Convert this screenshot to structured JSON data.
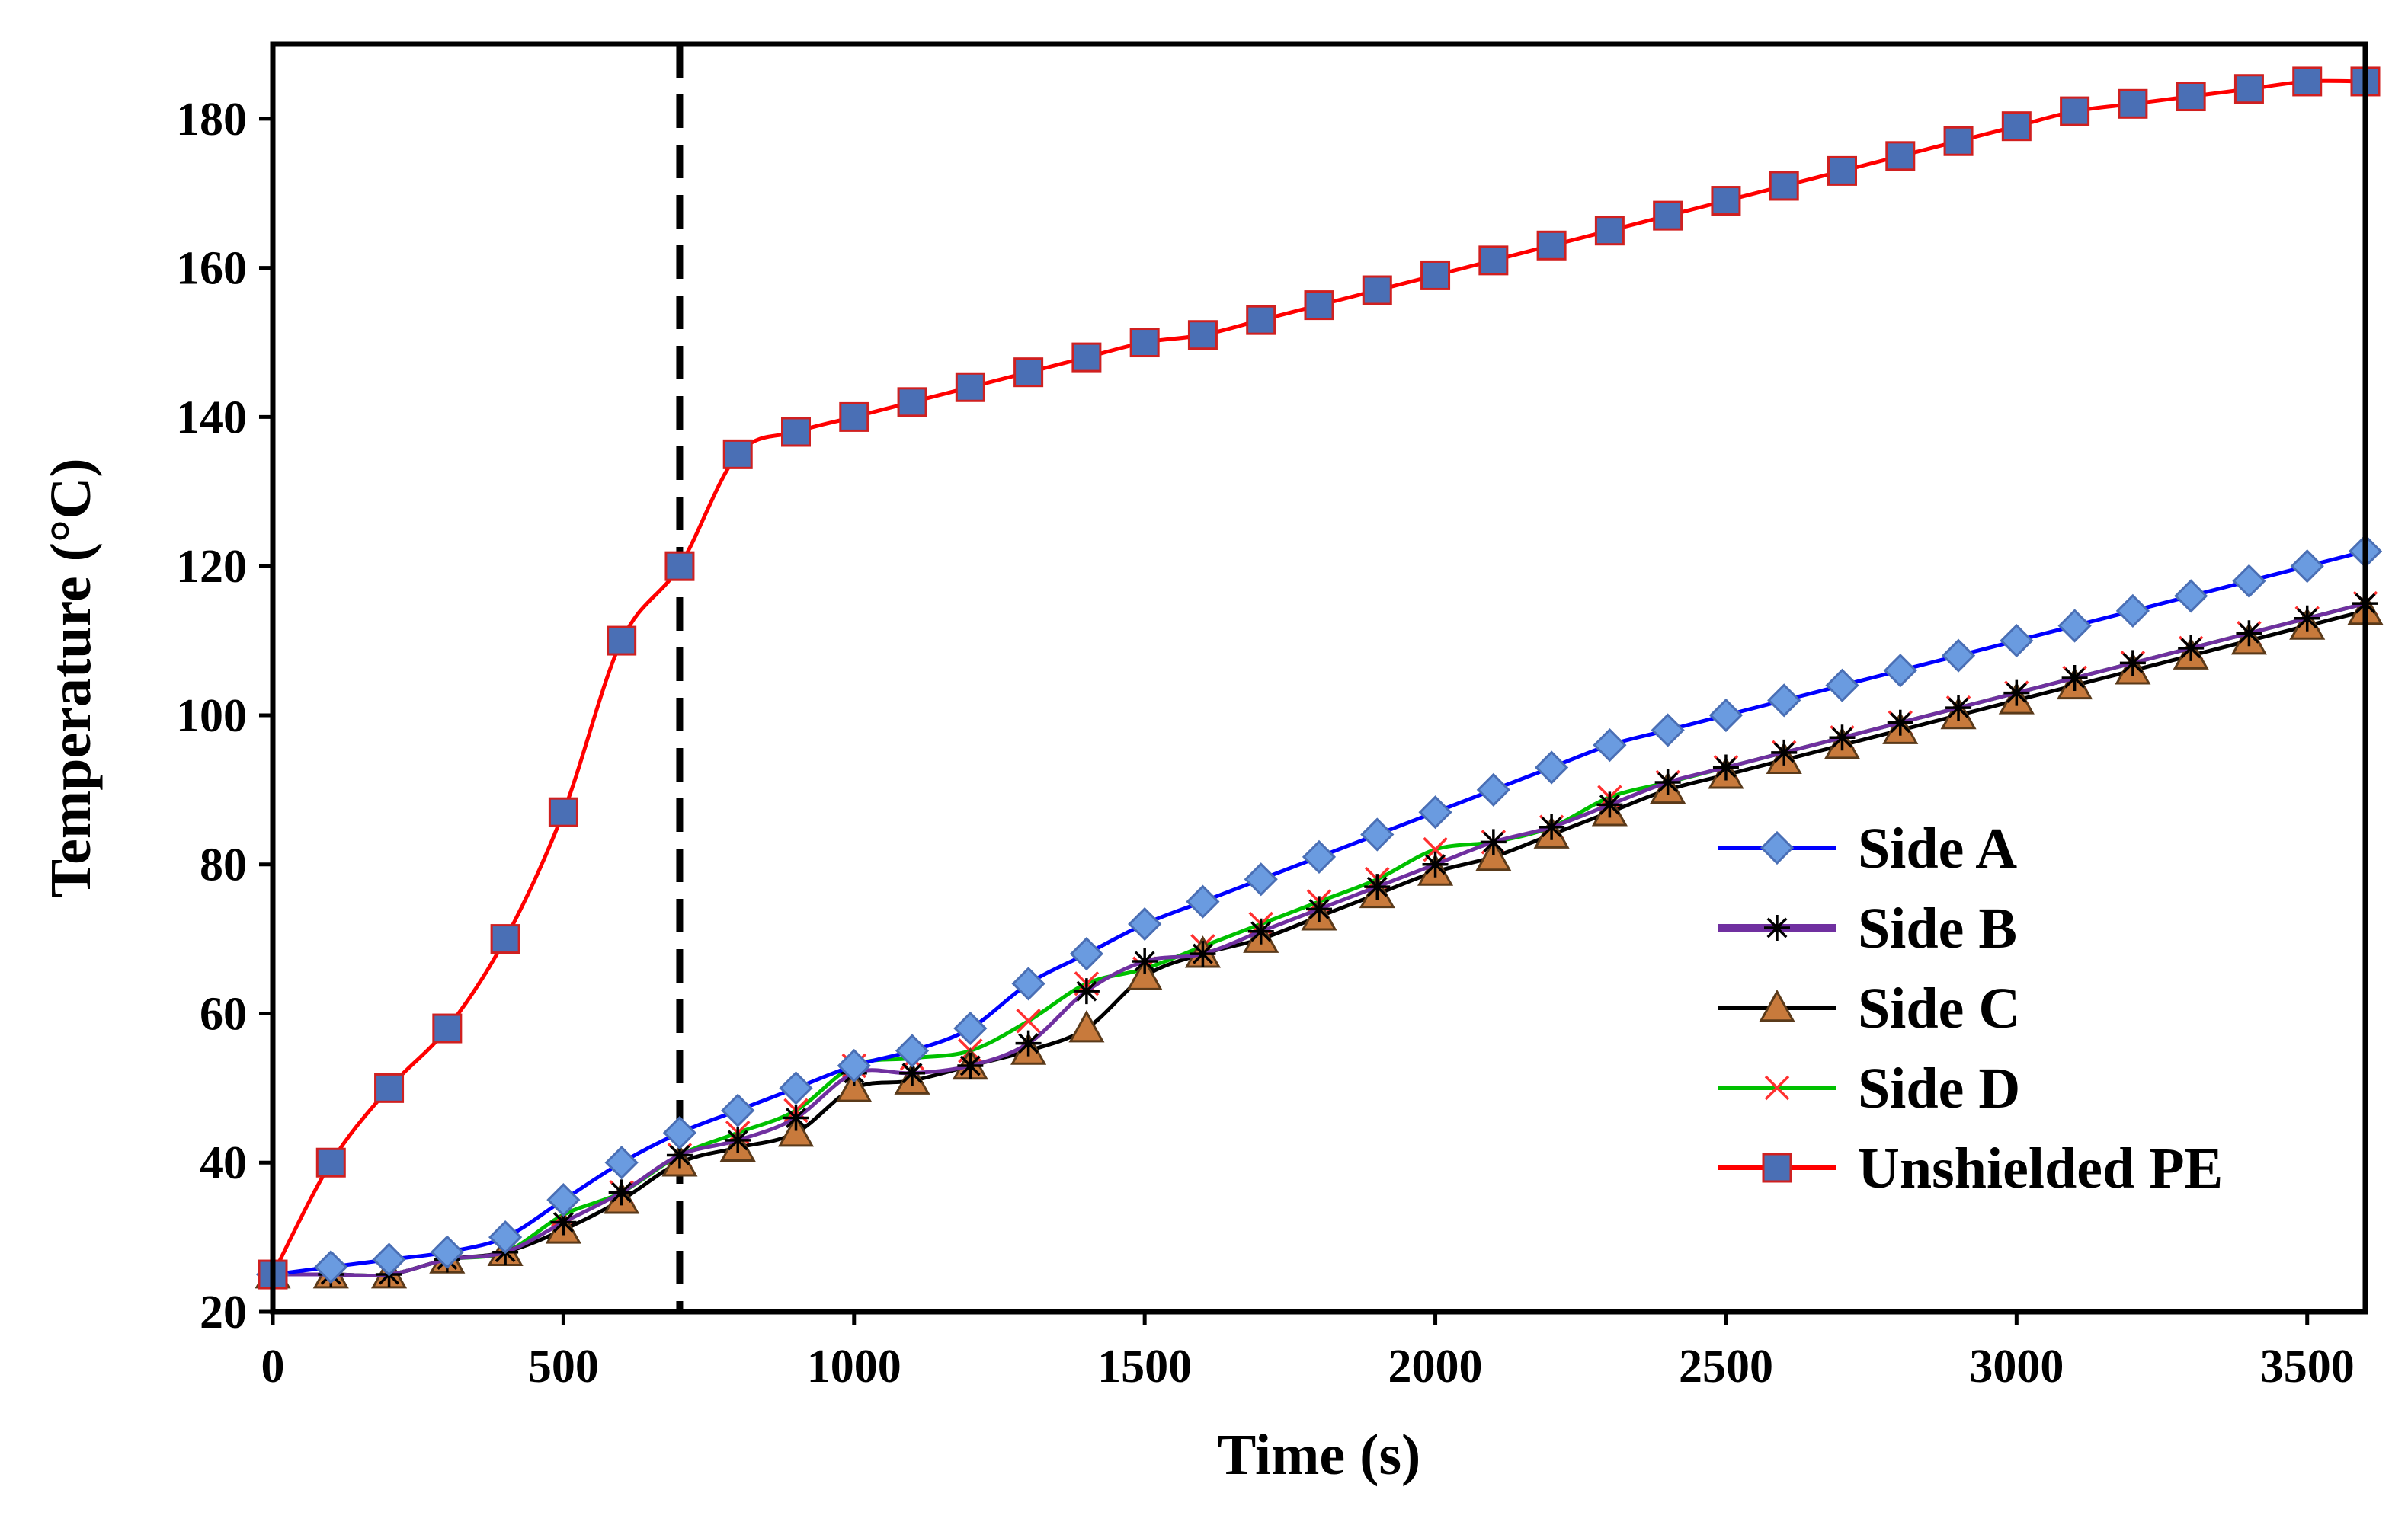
{
  "chart_data": {
    "type": "line",
    "title": "",
    "xlabel": "Time (s)",
    "ylabel": "Temperature (°C)",
    "xlim": [
      0,
      3600
    ],
    "ylim": [
      20,
      190
    ],
    "xticks": [
      0,
      500,
      1000,
      1500,
      2000,
      2500,
      3000,
      3500
    ],
    "yticks": [
      20,
      40,
      60,
      80,
      100,
      120,
      140,
      160,
      180
    ],
    "xtick_labels": [
      "0",
      "500",
      "1000",
      "1500",
      "2000",
      "2500",
      "3000",
      "3500"
    ],
    "ytick_labels": [
      "20",
      "40",
      "60",
      "80",
      "100",
      "120",
      "140",
      "160",
      "180"
    ],
    "grid": false,
    "legend_position": "lower-right",
    "reference_line": {
      "x": 700,
      "style": "dashed",
      "color": "#000000"
    },
    "x": [
      0,
      100,
      200,
      300,
      400,
      500,
      600,
      700,
      800,
      900,
      1000,
      1100,
      1200,
      1300,
      1400,
      1500,
      1600,
      1700,
      1800,
      1900,
      2000,
      2100,
      2200,
      2300,
      2400,
      2500,
      2600,
      2700,
      2800,
      2900,
      3000,
      3100,
      3200,
      3300,
      3400,
      3500,
      3600
    ],
    "series": [
      {
        "name": "Side A",
        "line_color": "#0000ff",
        "marker": "diamond",
        "marker_fill": "#6a9be0",
        "marker_stroke": "#4a6fb5",
        "values": [
          25,
          26,
          27,
          28,
          30,
          35,
          40,
          44,
          47,
          50,
          53,
          55,
          58,
          64,
          68,
          72,
          75,
          78,
          81,
          84,
          87,
          90,
          93,
          96,
          98,
          100,
          102,
          104,
          106,
          108,
          110,
          112,
          114,
          116,
          118,
          120,
          122
        ]
      },
      {
        "name": "Side B",
        "line_color": "#7030a0",
        "marker": "asterisk",
        "marker_fill": "#000000",
        "marker_stroke": "#000000",
        "values": [
          25,
          25,
          25,
          27,
          28,
          32,
          36,
          41,
          43,
          46,
          52,
          52,
          53,
          56,
          63,
          67,
          68,
          71,
          74,
          77,
          80,
          83,
          85,
          88,
          91,
          93,
          95,
          97,
          99,
          101,
          103,
          105,
          107,
          109,
          111,
          113,
          115
        ]
      },
      {
        "name": "Side C",
        "line_color": "#000000",
        "marker": "triangle",
        "marker_fill": "#c87a3c",
        "marker_stroke": "#5a3a1a",
        "values": [
          25,
          25,
          25,
          27,
          28,
          31,
          35,
          40,
          42,
          44,
          50,
          51,
          53,
          55,
          58,
          65,
          68,
          70,
          73,
          76,
          79,
          81,
          84,
          87,
          90,
          92,
          94,
          96,
          98,
          100,
          102,
          104,
          106,
          108,
          110,
          112,
          114
        ]
      },
      {
        "name": "Side D",
        "line_color": "#00c000",
        "marker": "x",
        "marker_fill": "#ff3030",
        "marker_stroke": "#ff3030",
        "values": [
          25,
          25,
          25,
          27,
          28,
          33,
          36,
          41,
          44,
          47,
          53,
          54,
          55,
          59,
          64,
          66,
          69,
          72,
          75,
          78,
          82,
          83,
          85,
          89,
          91,
          93,
          95,
          97,
          99,
          101,
          103,
          105,
          107,
          109,
          111,
          113,
          115
        ]
      },
      {
        "name": "Unshielded PE",
        "line_color": "#ff0000",
        "marker": "square",
        "marker_fill": "#4a6fb5",
        "marker_stroke": "#d02020",
        "values": [
          25,
          40,
          50,
          58,
          70,
          87,
          110,
          120,
          135,
          138,
          140,
          142,
          144,
          146,
          148,
          150,
          151,
          153,
          155,
          157,
          159,
          161,
          163,
          165,
          167,
          169,
          171,
          173,
          175,
          177,
          179,
          181,
          182,
          183,
          184,
          185,
          185
        ]
      }
    ]
  }
}
